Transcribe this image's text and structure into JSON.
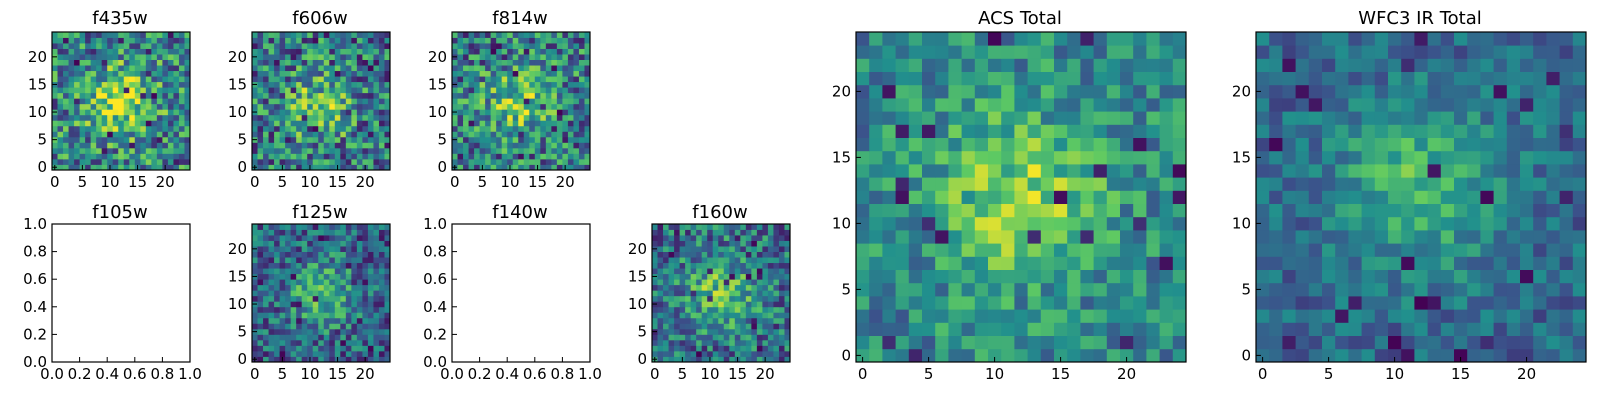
{
  "figure": {
    "colormap": "viridis",
    "colormap_stops": [
      "#440154",
      "#3b528b",
      "#21908d",
      "#5dc963",
      "#fde725"
    ],
    "axes_color": "#000000",
    "background": "#ffffff"
  },
  "chart_data": [
    {
      "type": "heatmap",
      "title": "f435w",
      "image_size": [
        25,
        25
      ],
      "x_ticks": [
        "0",
        "5",
        "10",
        "15",
        "20"
      ],
      "y_ticks": [
        "0",
        "5",
        "10",
        "15",
        "20"
      ],
      "xlim": [
        -0.5,
        24.5
      ],
      "ylim": [
        -0.5,
        24.5
      ],
      "source_center": [
        12,
        12
      ],
      "noise_level": 0.34,
      "brightness_bias": 0.62
    },
    {
      "type": "heatmap",
      "title": "f606w",
      "image_size": [
        25,
        25
      ],
      "x_ticks": [
        "0",
        "5",
        "10",
        "15",
        "20"
      ],
      "y_ticks": [
        "0",
        "5",
        "10",
        "15",
        "20"
      ],
      "xlim": [
        -0.5,
        24.5
      ],
      "ylim": [
        -0.5,
        24.5
      ],
      "source_center": [
        12,
        11
      ],
      "noise_level": 0.36,
      "brightness_bias": 0.52
    },
    {
      "type": "heatmap",
      "title": "f814w",
      "image_size": [
        25,
        25
      ],
      "x_ticks": [
        "0",
        "5",
        "10",
        "15",
        "20"
      ],
      "y_ticks": [
        "0",
        "5",
        "10",
        "15",
        "20"
      ],
      "xlim": [
        -0.5,
        24.5
      ],
      "ylim": [
        -0.5,
        24.5
      ],
      "source_center": [
        12,
        12
      ],
      "noise_level": 0.34,
      "brightness_bias": 0.56
    },
    {
      "type": "heatmap",
      "title": "f105w",
      "empty": true,
      "x_ticks": [
        "0.0",
        "0.2",
        "0.4",
        "0.6",
        "0.8",
        "1.0"
      ],
      "y_ticks": [
        "0.0",
        "0.2",
        "0.4",
        "0.6",
        "0.8",
        "1.0"
      ],
      "xlim": [
        0,
        1
      ],
      "ylim": [
        0,
        1
      ]
    },
    {
      "type": "heatmap",
      "title": "f125w",
      "image_size": [
        25,
        25
      ],
      "x_ticks": [
        "0",
        "5",
        "10",
        "15",
        "20"
      ],
      "y_ticks": [
        "0",
        "5",
        "10",
        "15",
        "20"
      ],
      "xlim": [
        -0.5,
        24.5
      ],
      "ylim": [
        -0.5,
        24.5
      ],
      "source_center": [
        12,
        12
      ],
      "noise_level": 0.26,
      "brightness_bias": 0.42
    },
    {
      "type": "heatmap",
      "title": "f140w",
      "empty": true,
      "x_ticks": [
        "0.0",
        "0.2",
        "0.4",
        "0.6",
        "0.8",
        "1.0"
      ],
      "y_ticks": [
        "0.0",
        "0.2",
        "0.4",
        "0.6",
        "0.8",
        "1.0"
      ],
      "xlim": [
        0,
        1
      ],
      "ylim": [
        0,
        1
      ]
    },
    {
      "type": "heatmap",
      "title": "f160w",
      "image_size": [
        25,
        25
      ],
      "x_ticks": [
        "0",
        "5",
        "10",
        "15",
        "20"
      ],
      "y_ticks": [
        "0",
        "5",
        "10",
        "15",
        "20"
      ],
      "xlim": [
        -0.5,
        24.5
      ],
      "ylim": [
        -0.5,
        24.5
      ],
      "source_center": [
        12,
        12
      ],
      "noise_level": 0.28,
      "brightness_bias": 0.5
    },
    {
      "type": "heatmap",
      "title": "ACS Total",
      "image_size": [
        25,
        25
      ],
      "x_ticks": [
        "0",
        "5",
        "10",
        "15",
        "20"
      ],
      "y_ticks": [
        "0",
        "5",
        "10",
        "15",
        "20"
      ],
      "xlim": [
        -0.5,
        24.5
      ],
      "ylim": [
        -0.5,
        24.5
      ],
      "source_center": [
        12,
        12
      ],
      "noise_level": 0.22,
      "brightness_bias": 0.62
    },
    {
      "type": "heatmap",
      "title": "WFC3 IR Total",
      "image_size": [
        25,
        25
      ],
      "x_ticks": [
        "0",
        "5",
        "10",
        "15",
        "20"
      ],
      "y_ticks": [
        "0",
        "5",
        "10",
        "15",
        "20"
      ],
      "xlim": [
        -0.5,
        24.5
      ],
      "ylim": [
        -0.5,
        24.5
      ],
      "source_center": [
        12,
        13
      ],
      "noise_level": 0.16,
      "brightness_bias": 0.45
    }
  ]
}
